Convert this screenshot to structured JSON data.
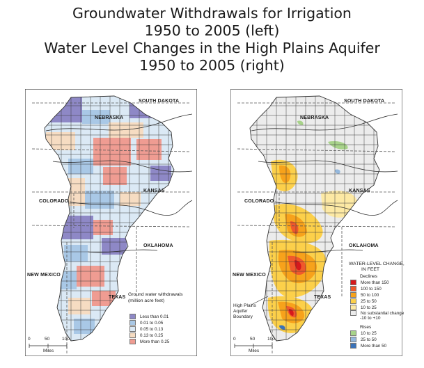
{
  "title": {
    "line1": "Groundwater Withdrawals for Irrigation",
    "line2": "1950 to 2005 (left)",
    "line3": "Water Level Changes in the High Plains Aquifer",
    "line4": "1950 to 2005 (right)"
  },
  "left_map": {
    "states": {
      "south_dakota": "SOUTH DAKOTA",
      "nebraska": "NEBRASKA",
      "kansas": "KANSAS",
      "colorado": "COLORADO",
      "oklahoma": "OKLAHOMA",
      "new_mexico": "NEW MEXICO",
      "texas": "TEXAS"
    },
    "legend": {
      "title_line1": "Ground water withdrawals",
      "title_line2": "(million acre feet)",
      "items": [
        {
          "label": "Less than 0.01",
          "color": "#8e88c6"
        },
        {
          "label": "0.01 to 0.05",
          "color": "#a9c8e6"
        },
        {
          "label": "0.05 to 0.13",
          "color": "#dbe9f5"
        },
        {
          "label": "0.13 to 0.25",
          "color": "#f6dcc2"
        },
        {
          "label": "More than 0.25",
          "color": "#ef9c92"
        }
      ]
    },
    "scale": {
      "ticks": [
        "0",
        "50",
        "100"
      ],
      "unit": "Miles"
    }
  },
  "right_map": {
    "states": {
      "south_dakota": "SOUTH DAKOTA",
      "nebraska": "NEBRASKA",
      "kansas": "KANSAS",
      "colorado": "COLORADO",
      "oklahoma": "OKLAHOMA",
      "new_mexico": "NEW MEXICO",
      "texas": "TEXAS"
    },
    "boundary_label": {
      "line1": "High Plains",
      "line2": "Aquifer",
      "line3": "Boundary"
    },
    "legend": {
      "title_line1": "WATER-LEVEL CHANGE,",
      "title_line2": "IN FEET",
      "declines_label": "Declines",
      "declines": [
        {
          "label": "More than 150",
          "color": "#d7191c"
        },
        {
          "label": "100 to 150",
          "color": "#f0592b"
        },
        {
          "label": "50 to 100",
          "color": "#f7a21b"
        },
        {
          "label": "25 to 50",
          "color": "#fcd04a"
        },
        {
          "label": "10 to 25",
          "color": "#fde9a4"
        }
      ],
      "no_change_label1": "No substantial change",
      "no_change_label2": "-10 to +10",
      "no_change_color": "#ececec",
      "rises_label": "Rises",
      "rises": [
        {
          "label": "10 to 25",
          "color": "#a8d38a"
        },
        {
          "label": "25 to 50",
          "color": "#94b8dd"
        },
        {
          "label": "More than 50",
          "color": "#3a72b8"
        }
      ]
    },
    "scale": {
      "ticks": [
        "0",
        "50",
        "100"
      ],
      "unit": "Miles"
    }
  }
}
